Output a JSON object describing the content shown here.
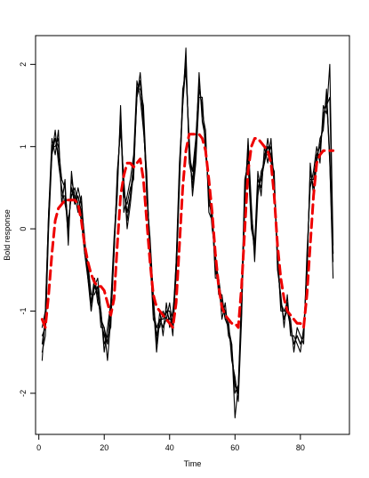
{
  "chart_data": {
    "type": "line",
    "title": "",
    "xlabel": "Time",
    "ylabel": "Bold response",
    "xlim": [
      -1,
      95
    ],
    "ylim": [
      -2.5,
      2.35
    ],
    "x_ticks": [
      0,
      20,
      40,
      60,
      80
    ],
    "y_ticks": [
      -2,
      -1,
      0,
      1,
      2
    ],
    "x_tick_labels": [
      "0",
      "20",
      "40",
      "60",
      "80"
    ],
    "y_tick_labels": [
      "-2",
      "-1",
      "0",
      "1",
      "2"
    ],
    "grid": false,
    "legend": "none",
    "colors": {
      "observed": "#000000",
      "fitted": "#ee0000"
    },
    "x": [
      1,
      2,
      3,
      4,
      5,
      6,
      7,
      8,
      9,
      10,
      11,
      12,
      13,
      14,
      15,
      16,
      17,
      18,
      19,
      20,
      21,
      22,
      23,
      24,
      25,
      26,
      27,
      28,
      29,
      30,
      31,
      32,
      33,
      34,
      35,
      36,
      37,
      38,
      39,
      40,
      41,
      42,
      43,
      44,
      45,
      46,
      47,
      48,
      49,
      50,
      51,
      52,
      53,
      54,
      55,
      56,
      57,
      58,
      59,
      60,
      61,
      62,
      63,
      64,
      65,
      66,
      67,
      68,
      69,
      70,
      71,
      72,
      73,
      74,
      75,
      76,
      77,
      78,
      79,
      80,
      81,
      82,
      83,
      84,
      85,
      86,
      87,
      88,
      89,
      90
    ],
    "series": [
      {
        "style": "solid",
        "values": [
          -1.4,
          -1.1,
          0.1,
          1.0,
          1.1,
          1.0,
          0.6,
          0.5,
          0.0,
          0.5,
          0.4,
          0.4,
          0.2,
          -0.2,
          -0.5,
          -0.9,
          -0.7,
          -0.8,
          -1.1,
          -1.3,
          -1.4,
          -1.0,
          -0.2,
          0.6,
          1.3,
          0.5,
          0.2,
          0.4,
          0.8,
          1.7,
          1.8,
          1.3,
          0.5,
          -0.2,
          -0.9,
          -1.3,
          -1.1,
          -1.2,
          -1.0,
          -1.1,
          -1.1,
          -0.5,
          0.6,
          1.6,
          2.0,
          1.0,
          0.5,
          0.9,
          1.7,
          1.5,
          1.0,
          0.4,
          0.1,
          -0.4,
          -0.7,
          -0.9,
          -1.0,
          -1.2,
          -1.5,
          -1.9,
          -2.0,
          -1.0,
          0.4,
          1.0,
          0.2,
          -0.3,
          0.5,
          0.6,
          0.9,
          1.0,
          0.9,
          0.6,
          -0.4,
          -0.9,
          -1.1,
          -0.9,
          -1.2,
          -1.4,
          -1.3,
          -1.4,
          -1.3,
          -0.5,
          0.7,
          0.5,
          0.9,
          1.0,
          1.3,
          1.6,
          0.9,
          -0.3
        ]
      },
      {
        "style": "solid",
        "values": [
          -1.2,
          -1.0,
          0.2,
          1.1,
          0.9,
          1.2,
          0.3,
          0.6,
          -0.2,
          0.7,
          0.3,
          0.5,
          0.3,
          -0.1,
          -0.6,
          -1.0,
          -0.6,
          -0.9,
          -1.0,
          -1.5,
          -1.2,
          -0.9,
          -0.1,
          0.5,
          1.4,
          0.2,
          0.4,
          0.6,
          0.9,
          1.8,
          1.6,
          1.2,
          0.7,
          -0.4,
          -1.0,
          -1.2,
          -1.2,
          -1.0,
          -1.1,
          -0.9,
          -1.2,
          -0.4,
          0.8,
          1.5,
          2.2,
          0.8,
          0.6,
          1.0,
          1.9,
          1.3,
          1.1,
          0.3,
          0.2,
          -0.6,
          -0.6,
          -1.1,
          -0.9,
          -1.3,
          -1.4,
          -2.0,
          -1.9,
          -0.8,
          0.6,
          0.8,
          0.0,
          -0.2,
          0.7,
          0.4,
          1.0,
          0.8,
          1.1,
          0.5,
          -0.3,
          -1.0,
          -1.0,
          -1.0,
          -1.1,
          -1.5,
          -1.2,
          -1.3,
          -1.4,
          -0.3,
          0.5,
          0.7,
          1.0,
          0.8,
          1.5,
          1.4,
          2.0,
          -0.2
        ]
      },
      {
        "style": "solid",
        "values": [
          -1.5,
          -1.3,
          0.0,
          0.9,
          1.2,
          0.8,
          0.5,
          0.3,
          0.1,
          0.4,
          0.5,
          0.3,
          0.1,
          -0.3,
          -0.4,
          -0.8,
          -0.8,
          -0.7,
          -1.2,
          -1.2,
          -1.6,
          -1.1,
          -0.3,
          0.7,
          1.2,
          0.6,
          0.0,
          0.3,
          0.7,
          1.6,
          1.9,
          1.4,
          0.4,
          -0.1,
          -0.8,
          -1.4,
          -1.0,
          -1.3,
          -0.9,
          -1.2,
          -1.0,
          -0.6,
          0.5,
          1.7,
          1.9,
          1.1,
          0.4,
          0.8,
          1.6,
          1.6,
          0.9,
          0.5,
          0.0,
          -0.3,
          -0.8,
          -0.8,
          -1.1,
          -1.1,
          -1.6,
          -1.8,
          -2.1,
          -1.1,
          0.3,
          1.1,
          0.3,
          -0.4,
          0.4,
          0.7,
          0.8,
          1.1,
          0.8,
          0.7,
          -0.5,
          -0.8,
          -1.2,
          -0.8,
          -1.3,
          -1.3,
          -1.4,
          -1.5,
          -1.2,
          -0.6,
          0.8,
          0.4,
          0.8,
          1.1,
          1.2,
          1.7,
          0.8,
          -0.4
        ]
      },
      {
        "style": "solid",
        "values": [
          -1.3,
          -1.2,
          0.1,
          1.0,
          1.0,
          1.1,
          0.4,
          0.4,
          -0.1,
          0.6,
          0.4,
          0.2,
          0.4,
          -0.2,
          -0.5,
          -1.0,
          -0.7,
          -0.6,
          -1.0,
          -1.4,
          -1.3,
          -1.2,
          -0.2,
          0.4,
          1.5,
          0.4,
          0.3,
          0.5,
          0.6,
          1.7,
          1.7,
          1.5,
          0.6,
          -0.3,
          -1.1,
          -1.2,
          -1.1,
          -1.1,
          -1.0,
          -1.0,
          -1.3,
          -0.5,
          0.7,
          1.6,
          2.1,
          0.9,
          0.7,
          1.1,
          1.8,
          1.4,
          1.2,
          0.2,
          0.1,
          -0.5,
          -0.7,
          -1.0,
          -1.0,
          -1.2,
          -1.5,
          -1.9,
          -2.0,
          -0.9,
          0.5,
          0.9,
          0.1,
          -0.3,
          0.6,
          0.5,
          0.9,
          0.9,
          1.0,
          0.6,
          -0.4,
          -0.9,
          -1.1,
          -1.0,
          -1.2,
          -1.4,
          -1.3,
          -1.4,
          -1.3,
          -0.4,
          0.6,
          0.6,
          0.9,
          0.9,
          1.4,
          1.5,
          1.6,
          -0.3
        ]
      },
      {
        "style": "solid",
        "values": [
          -1.6,
          -1.0,
          0.2,
          0.9,
          1.1,
          0.9,
          0.6,
          0.5,
          0.0,
          0.5,
          0.3,
          0.4,
          0.2,
          -0.3,
          -0.6,
          -0.9,
          -0.6,
          -0.8,
          -1.1,
          -1.2,
          -1.4,
          -0.9,
          -0.3,
          0.6,
          1.3,
          0.5,
          0.1,
          0.4,
          0.8,
          1.6,
          1.8,
          1.3,
          0.5,
          -0.2,
          -0.9,
          -1.5,
          -1.1,
          -1.2,
          -1.1,
          -1.1,
          -1.1,
          -0.4,
          0.6,
          1.5,
          2.0,
          1.0,
          0.5,
          0.9,
          1.7,
          1.5,
          1.0,
          0.4,
          0.2,
          -0.4,
          -0.6,
          -0.9,
          -1.1,
          -1.2,
          -1.4,
          -2.3,
          -1.9,
          -1.0,
          0.4,
          1.0,
          0.2,
          -0.2,
          0.5,
          0.6,
          0.8,
          1.0,
          0.9,
          0.6,
          -0.3,
          -0.9,
          -1.0,
          -0.9,
          -1.2,
          -1.4,
          -1.3,
          -1.4,
          -1.3,
          -0.5,
          0.7,
          0.5,
          0.9,
          1.0,
          1.3,
          1.6,
          0.8,
          -0.6
        ]
      },
      {
        "style": "dashed",
        "values": [
          -1.1,
          -1.2,
          -0.8,
          -0.3,
          0.1,
          0.25,
          0.3,
          0.35,
          0.35,
          0.35,
          0.35,
          0.3,
          0.1,
          -0.2,
          -0.4,
          -0.55,
          -0.65,
          -0.7,
          -0.7,
          -0.75,
          -0.9,
          -1.05,
          -0.85,
          -0.2,
          0.4,
          0.65,
          0.8,
          0.8,
          0.75,
          0.8,
          0.85,
          0.6,
          0.1,
          -0.4,
          -0.8,
          -0.95,
          -1.0,
          -1.05,
          -1.1,
          -1.15,
          -1.2,
          -0.9,
          -0.2,
          0.5,
          0.95,
          1.15,
          1.15,
          1.15,
          1.15,
          1.1,
          0.95,
          0.6,
          0.2,
          -0.3,
          -0.7,
          -0.95,
          -1.05,
          -1.1,
          -1.15,
          -1.15,
          -1.2,
          -0.7,
          0.0,
          0.7,
          1.0,
          1.1,
          1.1,
          1.05,
          1.0,
          0.95,
          0.8,
          0.4,
          -0.2,
          -0.6,
          -0.85,
          -1.0,
          -1.05,
          -1.1,
          -1.15,
          -1.15,
          -1.2,
          -0.8,
          -0.2,
          0.4,
          0.8,
          0.9,
          0.95,
          0.95,
          0.95,
          0.95
        ]
      }
    ]
  }
}
